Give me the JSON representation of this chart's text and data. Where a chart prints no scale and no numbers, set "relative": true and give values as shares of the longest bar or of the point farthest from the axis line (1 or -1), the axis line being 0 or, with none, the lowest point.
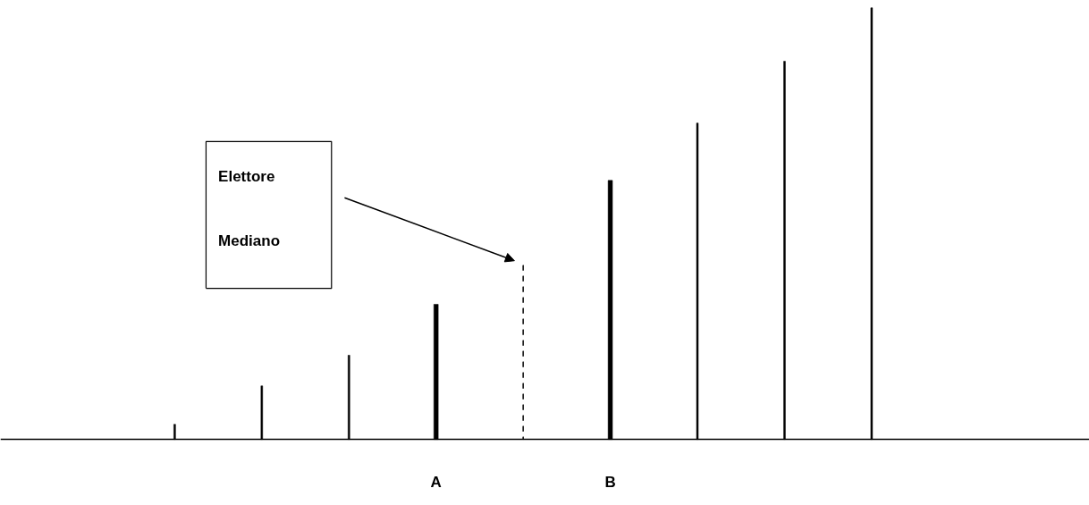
{
  "chart_data": {
    "type": "bar",
    "relative": true,
    "categories": [
      null,
      null,
      null,
      "A",
      null,
      "B",
      null,
      null,
      null
    ],
    "series": [
      {
        "color": "#000000",
        "line_style": "solid",
        "values": [
          0.035,
          0.124,
          0.195,
          null,
          null,
          null,
          0.733,
          0.876,
          1
        ]
      },
      {
        "color": "#000000",
        "line_style": "solid",
        "values": [
          null,
          null,
          null,
          0.313,
          null,
          0.6,
          null,
          null,
          null
        ]
      },
      {
        "color": "#000000",
        "line_style": "dashed",
        "values": [
          null,
          null,
          null,
          null,
          0.404,
          null,
          null,
          null,
          null
        ]
      }
    ],
    "annotations": [
      "Elettore Mediano"
    ],
    "grid": false
  }
}
